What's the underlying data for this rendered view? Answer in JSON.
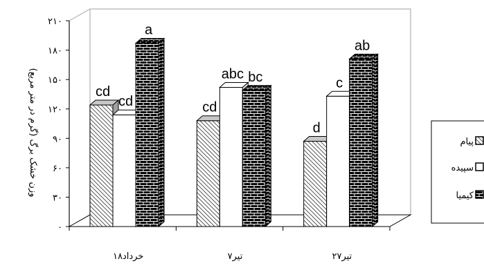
{
  "chart_data": {
    "type": "bar",
    "categories": [
      "۱۸خرداد",
      "۷تیر",
      "۲۷تیر"
    ],
    "series": [
      {
        "name": "پیام",
        "values": [
          124,
          108,
          87
        ],
        "color": "#d9d9d9",
        "pattern": "hatch"
      },
      {
        "name": "سپیده",
        "values": [
          114,
          142,
          133
        ],
        "color": "#ffffff",
        "pattern": "plain"
      },
      {
        "name": "کیمیا",
        "values": [
          187,
          139,
          171
        ],
        "color": "#000000",
        "pattern": "brick"
      }
    ],
    "value_labels": [
      [
        "cd",
        "cd",
        "a"
      ],
      [
        "cd",
        "abc",
        "bc"
      ],
      [
        "d",
        "c",
        "ab"
      ]
    ],
    "ylabel": "وزن خشک برگ (گرم در متر مربع)",
    "ylim": [
      0,
      210
    ],
    "yticks": [
      "۰",
      "۳۰",
      "۶۰",
      "۹۰",
      "۱۲۰",
      "۱۵۰",
      "۱۸۰",
      "۲۱۰"
    ],
    "legend_position": "right",
    "grid": false
  }
}
